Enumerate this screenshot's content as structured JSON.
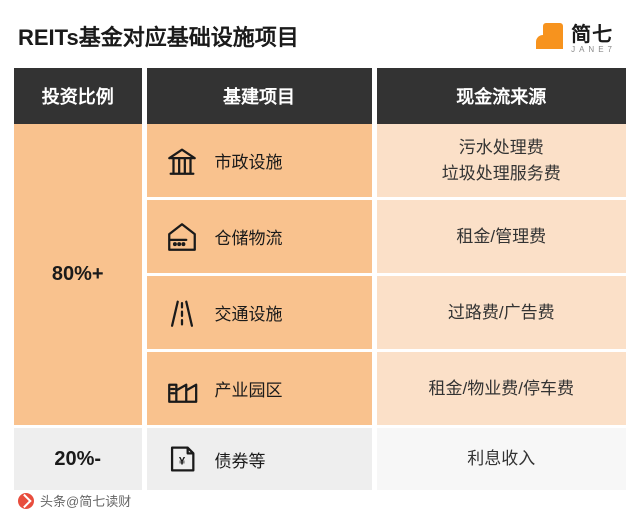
{
  "title": "REITs基金对应基础设施项目",
  "brand": {
    "cn": "简七",
    "en": "JANE7"
  },
  "columns": {
    "ratio": "投资比例",
    "project": "基建项目",
    "cash": "现金流来源"
  },
  "groups": [
    {
      "ratio": "80%+",
      "rows": [
        {
          "icon": "building-gov-icon",
          "project": "市政设施",
          "cash": "污水处理费\n垃圾处理服务费"
        },
        {
          "icon": "warehouse-icon",
          "project": "仓储物流",
          "cash": "租金/管理费"
        },
        {
          "icon": "highway-icon",
          "project": "交通设施",
          "cash": "过路费/广告费"
        },
        {
          "icon": "industrial-icon",
          "project": "产业园区",
          "cash": "租金/物业费/停车费"
        }
      ]
    },
    {
      "ratio": "20%-",
      "alt": true,
      "rows": [
        {
          "icon": "bond-doc-icon",
          "project": "债券等",
          "cash": "利息收入"
        }
      ]
    }
  ],
  "attribution": "头条@简七读财",
  "colors": {
    "header_bg": "#333333",
    "cell_main": "#f9c28e",
    "cell_cash": "#fbe0c8",
    "cell_alt_main": "#eeeeee",
    "cell_alt_cash": "#f7f7f7",
    "brand": "#f7931e"
  }
}
